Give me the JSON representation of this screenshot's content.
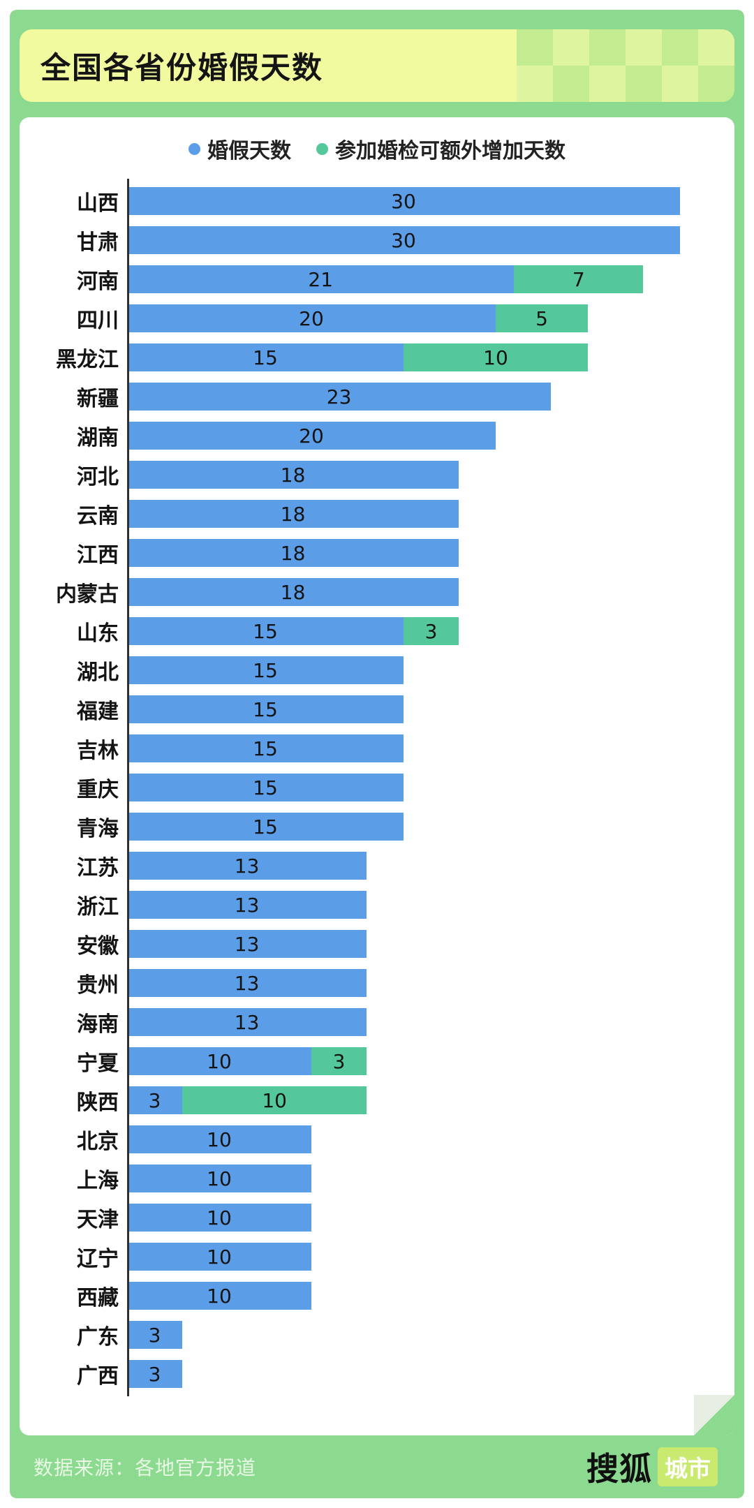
{
  "header": {
    "title": "全国各省份婚假天数"
  },
  "legend": {
    "items": [
      {
        "label": "婚假天数",
        "color": "#5C9DE8"
      },
      {
        "label": "参加婚检可额外增加天数",
        "color": "#55C89B"
      }
    ]
  },
  "chart_data": {
    "type": "bar",
    "orientation": "horizontal",
    "title": "全国各省份婚假天数",
    "x_max": 30,
    "grid": false,
    "legend_position": "top",
    "colors": {
      "base": "#5C9DE8",
      "extra": "#55C89B",
      "axis": "#2F2F2F"
    },
    "categories": [
      "山西",
      "甘肃",
      "河南",
      "四川",
      "黑龙江",
      "新疆",
      "湖南",
      "河北",
      "云南",
      "江西",
      "内蒙古",
      "山东",
      "湖北",
      "福建",
      "吉林",
      "重庆",
      "青海",
      "江苏",
      "浙江",
      "安徽",
      "贵州",
      "海南",
      "宁夏",
      "陕西",
      "北京",
      "上海",
      "天津",
      "辽宁",
      "西藏",
      "广东",
      "广西"
    ],
    "series": [
      {
        "name": "婚假天数",
        "values": [
          30,
          30,
          21,
          20,
          15,
          23,
          20,
          18,
          18,
          18,
          18,
          15,
          15,
          15,
          15,
          15,
          15,
          13,
          13,
          13,
          13,
          13,
          10,
          3,
          10,
          10,
          10,
          10,
          10,
          3,
          3
        ]
      },
      {
        "name": "参加婚检可额外增加天数",
        "values": [
          0,
          0,
          7,
          5,
          10,
          0,
          0,
          0,
          0,
          0,
          0,
          3,
          0,
          0,
          0,
          0,
          0,
          0,
          0,
          0,
          0,
          0,
          3,
          10,
          0,
          0,
          0,
          0,
          0,
          0,
          0
        ]
      }
    ],
    "rows": [
      {
        "label": "山西",
        "base": 30,
        "extra": 0
      },
      {
        "label": "甘肃",
        "base": 30,
        "extra": 0
      },
      {
        "label": "河南",
        "base": 21,
        "extra": 7
      },
      {
        "label": "四川",
        "base": 20,
        "extra": 5
      },
      {
        "label": "黑龙江",
        "base": 15,
        "extra": 10
      },
      {
        "label": "新疆",
        "base": 23,
        "extra": 0
      },
      {
        "label": "湖南",
        "base": 20,
        "extra": 0
      },
      {
        "label": "河北",
        "base": 18,
        "extra": 0
      },
      {
        "label": "云南",
        "base": 18,
        "extra": 0
      },
      {
        "label": "江西",
        "base": 18,
        "extra": 0
      },
      {
        "label": "内蒙古",
        "base": 18,
        "extra": 0
      },
      {
        "label": "山东",
        "base": 15,
        "extra": 3
      },
      {
        "label": "湖北",
        "base": 15,
        "extra": 0
      },
      {
        "label": "福建",
        "base": 15,
        "extra": 0
      },
      {
        "label": "吉林",
        "base": 15,
        "extra": 0
      },
      {
        "label": "重庆",
        "base": 15,
        "extra": 0
      },
      {
        "label": "青海",
        "base": 15,
        "extra": 0
      },
      {
        "label": "江苏",
        "base": 13,
        "extra": 0
      },
      {
        "label": "浙江",
        "base": 13,
        "extra": 0
      },
      {
        "label": "安徽",
        "base": 13,
        "extra": 0
      },
      {
        "label": "贵州",
        "base": 13,
        "extra": 0
      },
      {
        "label": "海南",
        "base": 13,
        "extra": 0
      },
      {
        "label": "宁夏",
        "base": 10,
        "extra": 3
      },
      {
        "label": "陕西",
        "base": 3,
        "extra": 10
      },
      {
        "label": "北京",
        "base": 10,
        "extra": 0
      },
      {
        "label": "上海",
        "base": 10,
        "extra": 0
      },
      {
        "label": "天津",
        "base": 10,
        "extra": 0
      },
      {
        "label": "辽宁",
        "base": 10,
        "extra": 0
      },
      {
        "label": "西藏",
        "base": 10,
        "extra": 0
      },
      {
        "label": "广东",
        "base": 3,
        "extra": 0
      },
      {
        "label": "广西",
        "base": 3,
        "extra": 0
      }
    ]
  },
  "footer": {
    "source": "数据来源：各地官方报道",
    "logo_text": "搜狐",
    "logo_badge": "城市"
  },
  "colors": {
    "background_green": "#8CD990",
    "title_box_bg": "#F2FA9F",
    "checker_light": "#DFF49E",
    "checker_dark": "#C3EB8F",
    "card_bg": "#FFFFFF",
    "bar_blue": "#5C9DE8",
    "bar_green": "#55C89B",
    "badge_bg": "#C9EA6F"
  }
}
